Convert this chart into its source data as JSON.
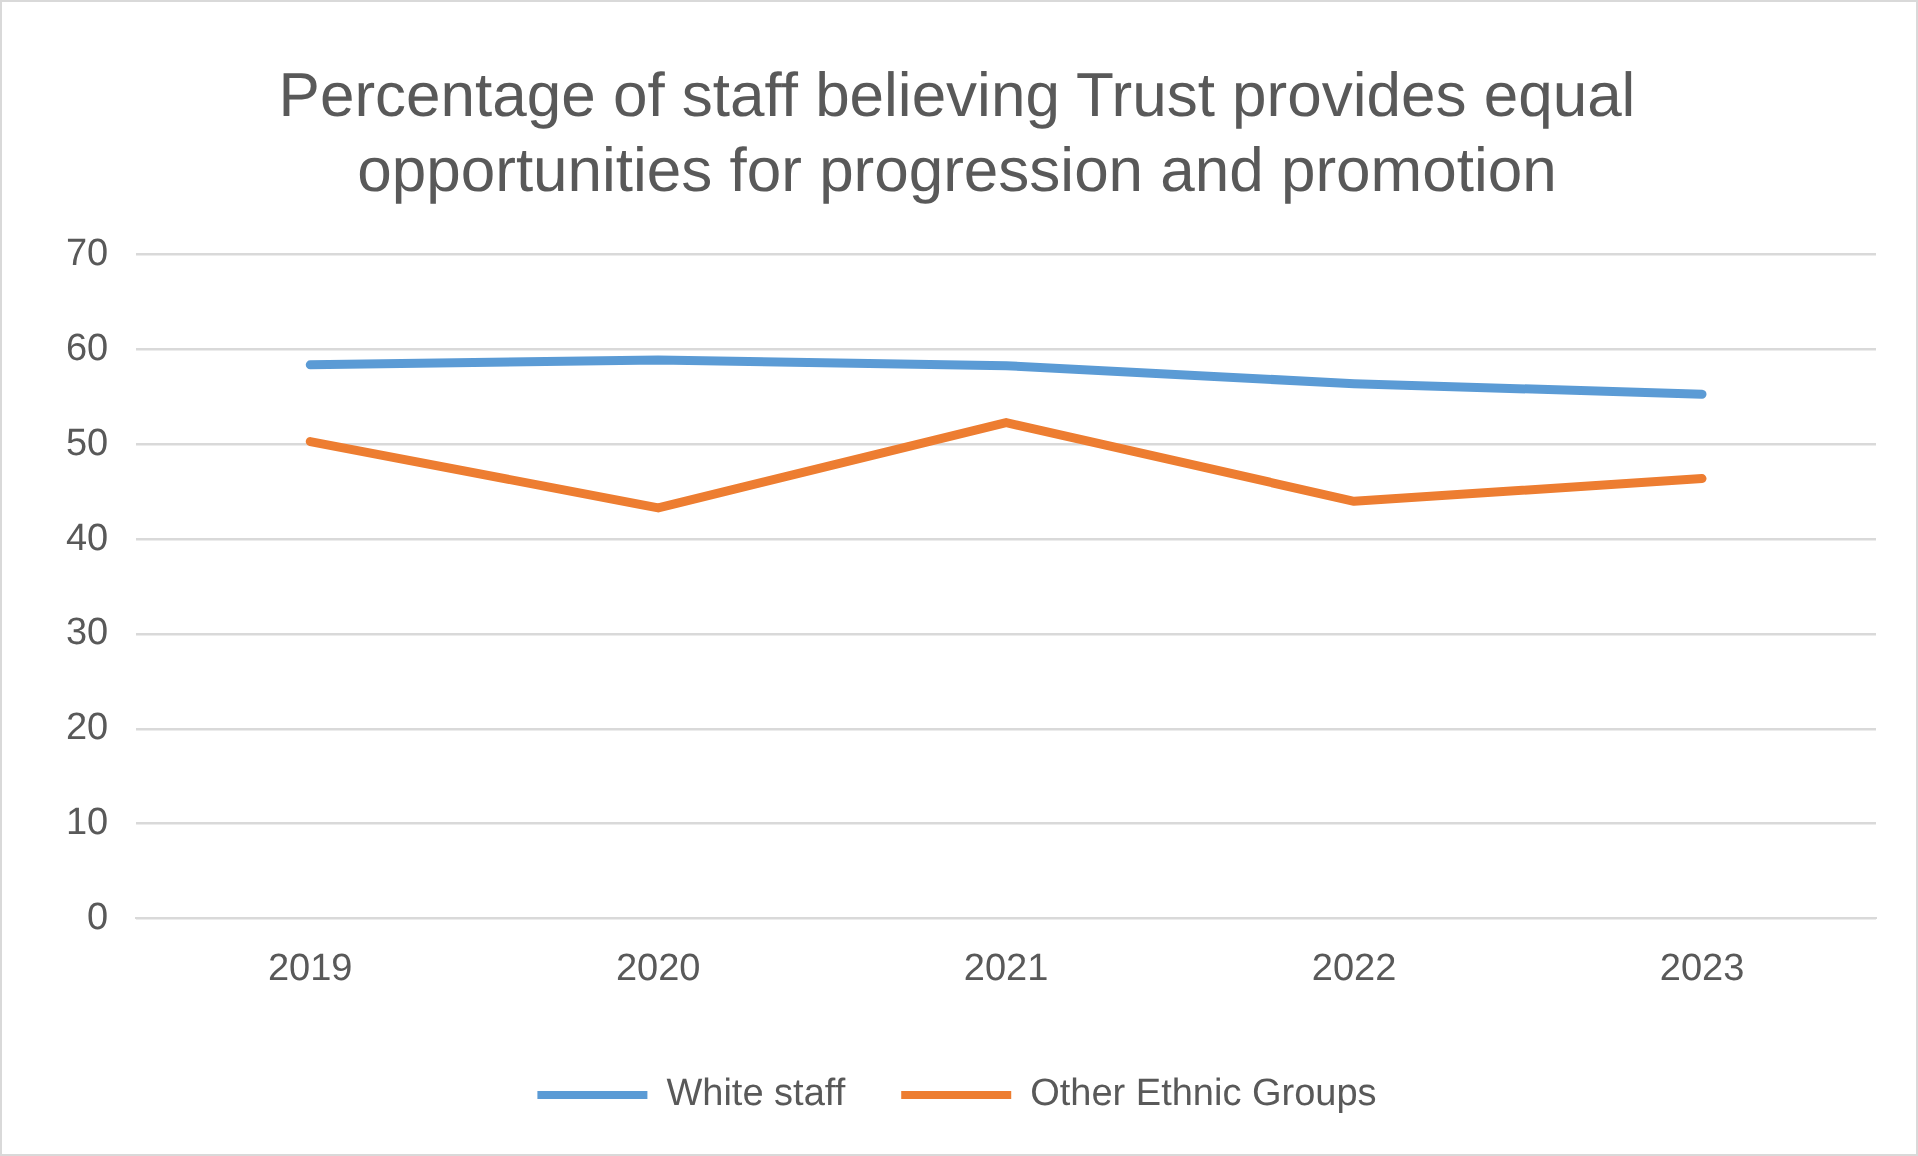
{
  "chart_data": {
    "type": "line",
    "title": "Percentage of staff believing Trust provides equal opportunities for progression and promotion",
    "categories": [
      "2019",
      "2020",
      "2021",
      "2022",
      "2023"
    ],
    "series": [
      {
        "name": "White staff",
        "color": "#5b9bd5",
        "values": [
          58.4,
          58.9,
          58.3,
          56.4,
          55.3
        ]
      },
      {
        "name": "Other Ethnic Groups",
        "color": "#ed7d31",
        "values": [
          50.3,
          43.3,
          52.3,
          44.0,
          46.4
        ]
      }
    ],
    "ylim": [
      0,
      70
    ],
    "yticks": [
      0,
      10,
      20,
      30,
      40,
      50,
      60,
      70
    ],
    "grid": "y",
    "legend": "bottom",
    "marker": "none",
    "line_style": "solid"
  }
}
